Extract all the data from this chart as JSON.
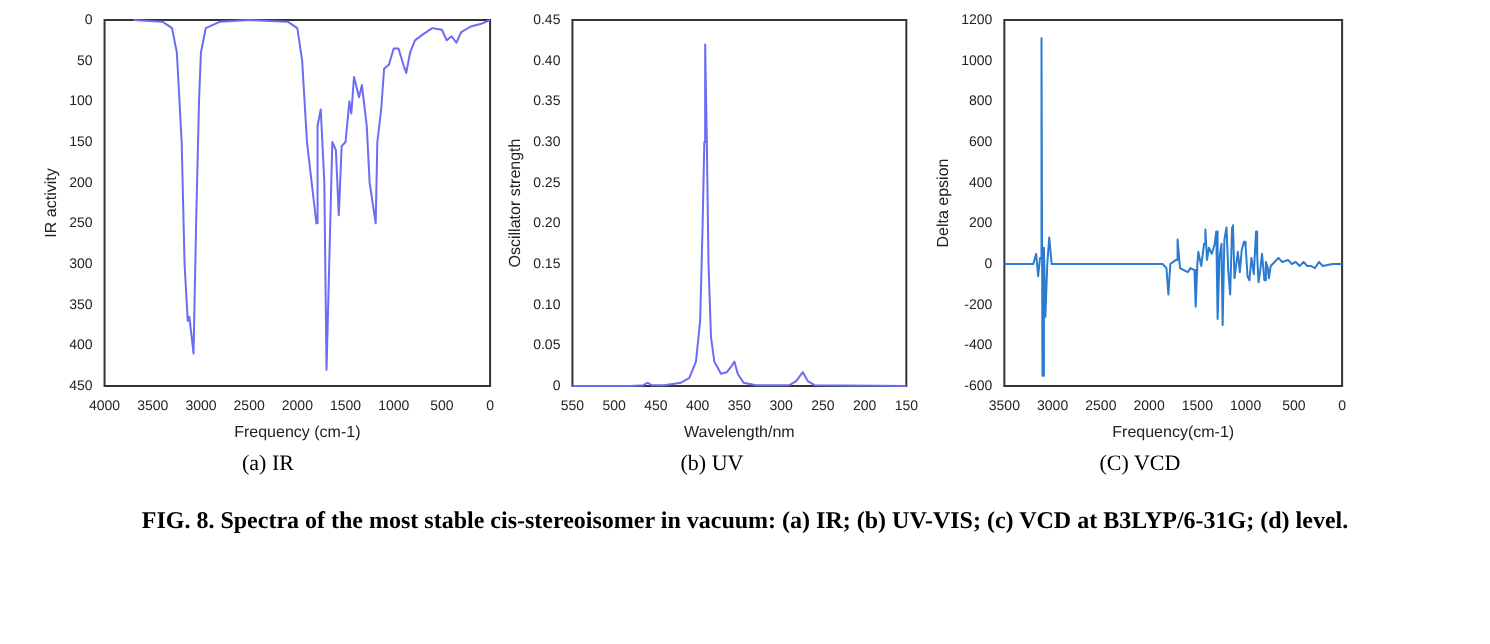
{
  "chart_data": [
    {
      "type": "line",
      "title": "(a)   IR",
      "xlabel": "Frequency (cm-1)",
      "ylabel": "IR activity",
      "color": "#6b6bf5",
      "grid": false,
      "legend": false,
      "marker": "none",
      "line_style": "solid",
      "xlim": [
        4000,
        0
      ],
      "ylim": [
        450,
        0
      ],
      "xticks": [
        4000,
        3500,
        3000,
        2500,
        2000,
        1500,
        1000,
        500,
        0
      ],
      "yticks": [
        0,
        50,
        100,
        150,
        200,
        250,
        300,
        350,
        400,
        450
      ],
      "x": [
        3700,
        3400,
        3300,
        3250,
        3200,
        3170,
        3137,
        3120,
        3077,
        3050,
        3020,
        3000,
        2950,
        2800,
        2500,
        2100,
        2000,
        1950,
        1900,
        1802,
        1790,
        1757,
        1720,
        1697,
        1637,
        1600,
        1570,
        1540,
        1500,
        1460,
        1440,
        1412,
        1360,
        1330,
        1280,
        1250,
        1187,
        1170,
        1130,
        1100,
        1050,
        1000,
        950,
        900,
        870,
        830,
        780,
        700,
        600,
        500,
        450,
        400,
        350,
        300,
        200,
        100,
        0
      ],
      "values": [
        0,
        2,
        10,
        40,
        150,
        300,
        370,
        365,
        410,
        250,
        100,
        40,
        10,
        2,
        0,
        2,
        10,
        50,
        150,
        250,
        130,
        110,
        200,
        430,
        150,
        160,
        240,
        155,
        150,
        100,
        115,
        70,
        95,
        80,
        130,
        200,
        250,
        150,
        110,
        60,
        55,
        35,
        35,
        55,
        65,
        40,
        25,
        18,
        10,
        12,
        25,
        20,
        28,
        15,
        8,
        5,
        0
      ],
      "annotations": [
        "FIG. 8. Spectra of the most stable cis-stereoisomer in vacuum: (a) IR; (b) UV-VIS; (c) VCD at B3LYP/6-31G; (d) level."
      ]
    },
    {
      "type": "line",
      "title": "(b) UV",
      "xlabel": "Wavelength/nm",
      "ylabel": "Oscillator strength",
      "color": "#6b6bf5",
      "grid": false,
      "legend": false,
      "marker": "none",
      "line_style": "solid",
      "xlim": [
        550,
        150
      ],
      "ylim": [
        0,
        0.45
      ],
      "xticks": [
        550,
        500,
        450,
        400,
        350,
        300,
        250,
        200,
        150
      ],
      "yticks": [
        0,
        0.05,
        {
          "value": 0.1,
          "label": "0.10"
        },
        0.15,
        {
          "value": 0.2,
          "label": "0.20"
        },
        0.25,
        {
          "value": 0.3,
          "label": "0.30"
        },
        0.35,
        {
          "value": 0.4,
          "label": "0.40"
        },
        0.45
      ],
      "x": [
        550,
        480,
        465,
        460,
        455,
        440,
        420,
        410,
        402,
        397,
        394,
        392,
        391,
        389,
        387,
        384,
        380,
        372,
        365,
        359,
        356,
        352,
        345,
        330,
        290,
        282,
        274,
        268,
        260,
        150
      ],
      "values": [
        0,
        0,
        0.001,
        0.004,
        0.001,
        0.001,
        0.004,
        0.01,
        0.03,
        0.08,
        0.2,
        0.3,
        0.42,
        0.3,
        0.15,
        0.06,
        0.03,
        0.015,
        0.017,
        0.025,
        0.03,
        0.015,
        0.004,
        0.001,
        0.001,
        0.006,
        0.017,
        0.006,
        0.001,
        0
      ]
    },
    {
      "type": "line",
      "title": "(C) VCD",
      "xlabel": "Frequency(cm-1)",
      "ylabel": "Delta epsion",
      "color": "#2b7bd1",
      "grid": false,
      "legend": false,
      "marker": "none",
      "line_style": "solid",
      "xlim": [
        3500,
        0
      ],
      "ylim": [
        -600,
        1200
      ],
      "xticks": [
        3500,
        3000,
        2500,
        2000,
        1500,
        1000,
        500,
        0
      ],
      "yticks": [
        -600,
        -400,
        -200,
        0,
        200,
        400,
        600,
        800,
        1000,
        1200
      ],
      "x": [
        3500,
        3200,
        3170,
        3150,
        3130,
        3115,
        3105,
        3090,
        3075,
        3055,
        3035,
        3010,
        2000,
        1860,
        1820,
        1800,
        1780,
        1720,
        1705,
        1680,
        1640,
        1600,
        1570,
        1530,
        1517,
        1500,
        1490,
        1460,
        1430,
        1417,
        1400,
        1380,
        1350,
        1320,
        1304,
        1290,
        1270,
        1250,
        1238,
        1220,
        1198,
        1180,
        1160,
        1140,
        1131,
        1115,
        1080,
        1060,
        1040,
        1015,
        1000,
        980,
        960,
        940,
        915,
        892,
        880,
        866,
        850,
        830,
        805,
        790,
        770,
        759,
        740,
        700,
        660,
        620,
        560,
        520,
        480,
        440,
        400,
        360,
        320,
        280,
        240,
        200,
        100,
        0
      ],
      "values": [
        0,
        0,
        50,
        -60,
        30,
        1110,
        -550,
        80,
        -260,
        0,
        130,
        0,
        0,
        0,
        -20,
        -150,
        0,
        20,
        120,
        -20,
        -30,
        -40,
        -20,
        -30,
        -210,
        0,
        60,
        -10,
        100,
        170,
        20,
        80,
        50,
        100,
        160,
        -270,
        30,
        100,
        -300,
        120,
        180,
        -30,
        -150,
        180,
        190,
        -70,
        60,
        -40,
        70,
        110,
        90,
        -60,
        -80,
        30,
        -50,
        160,
        40,
        -90,
        -40,
        50,
        -80,
        10,
        -20,
        -70,
        -10,
        10,
        30,
        10,
        20,
        0,
        10,
        -10,
        10,
        -10,
        -10,
        -20,
        10,
        -10,
        0,
        0
      ]
    }
  ]
}
